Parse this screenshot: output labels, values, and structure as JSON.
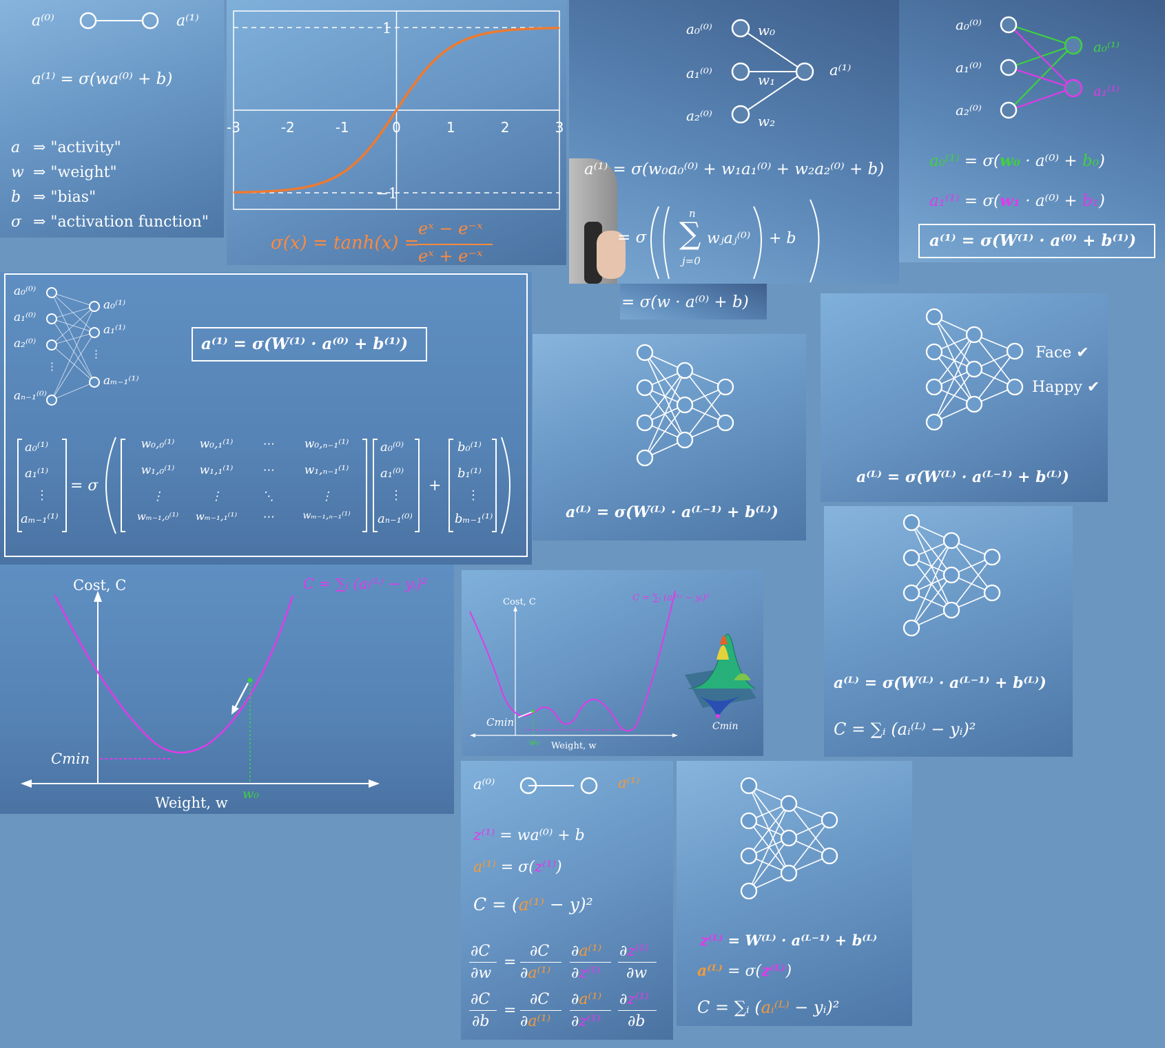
{
  "single": {
    "a0": "a⁽⁰⁾",
    "a1": "a⁽¹⁾",
    "eq": "a⁽¹⁾ = σ(wa⁽⁰⁾ + b)",
    "defs": [
      {
        "sym": "a",
        "text": "⇒ \"activity\""
      },
      {
        "sym": "w",
        "text": "⇒ \"weight\""
      },
      {
        "sym": "b",
        "text": "⇒ \"bias\""
      },
      {
        "sym": "σ",
        "text": "⇒ \"activation function\""
      }
    ]
  },
  "tanh_panel": {
    "formula_left": "σ(x) = tanh(x) =",
    "numerator": "eˣ − e⁻ˣ",
    "denominator": "eˣ + e⁻ˣ",
    "colors": {
      "curve": "#ef7a30",
      "grid": "#ffffff"
    }
  },
  "chart_data": {
    "type": "line",
    "x": [
      -3,
      -2.5,
      -2,
      -1.5,
      -1,
      -0.5,
      0,
      0.5,
      1,
      1.5,
      2,
      2.5,
      3
    ],
    "series": [
      {
        "values": [
          -0.995,
          -0.987,
          -0.964,
          -0.905,
          -0.762,
          -0.462,
          0,
          0.462,
          0.762,
          0.905,
          0.964,
          0.987,
          0.995
        ]
      }
    ],
    "xticks": [
      "-3",
      "-2",
      "-1",
      "0",
      "1",
      "2",
      "3"
    ],
    "yticks": [
      "1",
      "−1"
    ],
    "xlim": [
      -3,
      3
    ],
    "ylim": [
      -1.2,
      1.2
    ],
    "title": "",
    "xlabel": "",
    "ylabel": "",
    "grid": false,
    "dashed_asymptotes": [
      1,
      -1
    ]
  },
  "three_input": {
    "inputs": [
      "a₀⁽⁰⁾",
      "a₁⁽⁰⁾",
      "a₂⁽⁰⁾"
    ],
    "weights": [
      "w₀",
      "w₁",
      "w₂"
    ],
    "output": "a⁽¹⁾",
    "eq1": "a⁽¹⁾ = σ(w₀a₀⁽⁰⁾ + w₁a₁⁽⁰⁾ + w₂a₂⁽⁰⁾ + b)",
    "eq2_left": "= σ",
    "eq2_sum_top": "n",
    "eq2_sum": "∑",
    "eq2_sum_bottom": "j=0",
    "eq2_term": "wⱼaⱼ⁽⁰⁾",
    "eq2_right": "+ b",
    "eq3": "= σ(w · a⁽⁰⁾ + b)"
  },
  "two_output": {
    "inputs": [
      "a₀⁽⁰⁾",
      "a₁⁽⁰⁾",
      "a₂⁽⁰⁾"
    ],
    "outputs": [
      "a₀⁽¹⁾",
      "a₁⁽¹⁾"
    ],
    "eq1_lhs": "a₀⁽¹⁾",
    "eq1_mid": "= σ(",
    "eq1_w": "w₀",
    "eq1_dot": " · a⁽⁰⁾ + ",
    "eq1_b": "b₀",
    "eq1_end": ")",
    "eq2_lhs": "a₁⁽¹⁾",
    "eq2_mid": "= σ(",
    "eq2_w": "w₁",
    "eq2_dot": " · a⁽⁰⁾  + ",
    "eq2_b": "b₁",
    "eq2_end": ")",
    "boxed": "a⁽¹⁾ = σ(W⁽¹⁾ · a⁽⁰⁾ + b⁽¹⁾)",
    "colors": {
      "green": "#3fd13f",
      "magenta": "#e03ae8"
    }
  },
  "matrix_panel": {
    "left_labels": [
      "a₀⁽⁰⁾",
      "a₁⁽⁰⁾",
      "a₂⁽⁰⁾",
      "⋮",
      "aₙ₋₁⁽⁰⁾"
    ],
    "right_labels": [
      "a₀⁽¹⁾",
      "a₁⁽¹⁾",
      "⋮",
      "aₘ₋₁⁽¹⁾"
    ],
    "boxed": "a⁽¹⁾ = σ(W⁽¹⁾ · a⁽⁰⁾ + b⁽¹⁾)",
    "out_vec": [
      "a₀⁽¹⁾",
      "a₁⁽¹⁾",
      "⋮",
      "aₘ₋₁⁽¹⁾"
    ],
    "eq_sigma": "= σ",
    "W_rows": [
      [
        "w₀,₀⁽¹⁾",
        "w₀,₁⁽¹⁾",
        "⋯",
        "w₀,ₙ₋₁⁽¹⁾"
      ],
      [
        "w₁,₀⁽¹⁾",
        "w₁,₁⁽¹⁾",
        "⋯",
        "w₁,ₙ₋₁⁽¹⁾"
      ],
      [
        "⋮",
        "⋮",
        "⋱",
        "⋮"
      ],
      [
        "wₘ₋₁,₀⁽¹⁾",
        "wₘ₋₁,₁⁽¹⁾",
        "⋯",
        "wₘ₋₁,ₙ₋₁⁽¹⁾"
      ]
    ],
    "in_vec": [
      "a₀⁽⁰⁾",
      "a₁⁽⁰⁾",
      "⋮",
      "aₙ₋₁⁽⁰⁾"
    ],
    "plus": "+",
    "b_vec": [
      "b₀⁽¹⁾",
      "b₁⁽¹⁾",
      "⋮",
      "bₘ₋₁⁽¹⁾"
    ]
  },
  "deep_net_1": {
    "eq": "a⁽ᴸ⁾ = σ(W⁽ᴸ⁾ · a⁽ᴸ⁻¹⁾ + b⁽ᴸ⁾)"
  },
  "face_net": {
    "labels": [
      "Face ✔",
      "Happy ✔"
    ],
    "eq": "a⁽ᴸ⁾ = σ(W⁽ᴸ⁾ · a⁽ᴸ⁻¹⁾ + b⁽ᴸ⁾)"
  },
  "cost_net": {
    "eq": "a⁽ᴸ⁾ = σ(W⁽ᴸ⁾ · a⁽ᴸ⁻¹⁾ + b⁽ᴸ⁾)",
    "cost": "C = ∑ᵢ (aᵢ⁽ᴸ⁾ − yᵢ)²"
  },
  "gd_big": {
    "ylabel": "Cost, C",
    "xlabel": "Weight, w",
    "cmin": "Cmin",
    "w0": "w₀",
    "formula": "C = ∑ᵢ (aᵢ⁽ᴸ⁾ − yᵢ)²"
  },
  "gd_small": {
    "ylabel": "Cost, C",
    "xlabel": "Weight, w",
    "cmin": "Cmin",
    "cmin2": "Cmin",
    "w0": "w₀",
    "formula": "C = ∑ᵢ (aᵢ⁽ᴸ⁾ − yᵢ)²"
  },
  "backprop": {
    "a0": "a⁽⁰⁾",
    "a1": "a⁽¹⁾",
    "z_lhs": "z⁽¹⁾",
    "z_rhs": "= wa⁽⁰⁾ + b",
    "a_lhs": "a⁽¹⁾",
    "a_mid": "= σ(",
    "a_z": "z⁽¹⁾",
    "a_end": ")",
    "c_left": "C = (",
    "c_a": "a⁽¹⁾",
    "c_right": " − y)²",
    "d1": {
      "lhs_n": "∂C",
      "lhs_d": "∂w",
      "f1_n": "∂C",
      "f1_d": "∂a⁽¹⁾",
      "f2_n": "∂a⁽¹⁾",
      "f2_d": "∂z⁽¹⁾",
      "f3_n": "∂z⁽¹⁾",
      "f3_d": "∂w"
    },
    "d2": {
      "lhs_n": "∂C",
      "lhs_d": "∂b",
      "f1_n": "∂C",
      "f1_d": "∂a⁽¹⁾",
      "f2_n": "∂a⁽¹⁾",
      "f2_d": "∂z⁽¹⁾",
      "f3_n": "∂z⁽¹⁾",
      "f3_d": "∂b"
    },
    "eq": "="
  },
  "layer_eqs": {
    "z_lhs": "z⁽ᴸ⁾",
    "z_rhs": "= W⁽ᴸ⁾ · a⁽ᴸ⁻¹⁾ + b⁽ᴸ⁾",
    "a_lhs": "a⁽ᴸ⁾",
    "a_mid": "= σ(",
    "a_z": "z⁽ᴸ⁾",
    "a_end": ")",
    "c_left": "C = ∑ᵢ (",
    "c_a": "aᵢ⁽ᴸ⁾",
    "c_right": " − yᵢ)²"
  }
}
